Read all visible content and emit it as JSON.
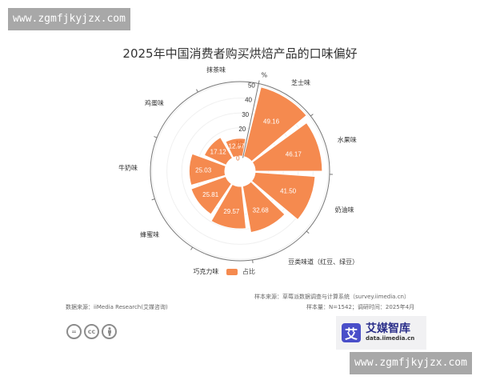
{
  "watermark": {
    "top": "www.zgmfjkyjzx.com",
    "bottom": "www.zgmfjkyjzx.com"
  },
  "title": "2025年中国消费者购买烘焙产品的口味偏好",
  "legend": {
    "label": "占比",
    "color": "#f58a4f"
  },
  "footer": {
    "data_source": "数据来源：iiMedia Research(艾媒咨询)",
    "sample_source": "样本来源：草莓派数据调查与计算系统（survey.iimedia.cn）",
    "sample_info": "样本量：N=1542；调研时间：2025年4月"
  },
  "brand": {
    "logo_char": "艾",
    "name": "艾媒智库",
    "url": "data.iimedia.cn"
  },
  "license_icons": [
    "nd-icon",
    "cc-icon",
    "by-icon"
  ],
  "chart_data": {
    "type": "bar",
    "subtype": "polar",
    "title": "2025年中国消费者购买烘焙产品的口味偏好",
    "categories": [
      "芝士味",
      "水果味",
      "奶油味",
      "豆类味道（红豆、绿豆）",
      "巧克力味",
      "蜂蜜味",
      "牛奶味",
      "鸡蛋味",
      "抹茶味"
    ],
    "series": [
      {
        "name": "占比",
        "values": [
          49.16,
          46.17,
          41.5,
          32.68,
          29.57,
          25.81,
          25.03,
          17.12,
          12.97
        ]
      }
    ],
    "unit": "%",
    "radial_axis": {
      "min": 0,
      "max": 50,
      "ticks": [
        0,
        10,
        20,
        30,
        40,
        50
      ]
    },
    "legend_position": "bottom",
    "color": "#f58a4f"
  }
}
